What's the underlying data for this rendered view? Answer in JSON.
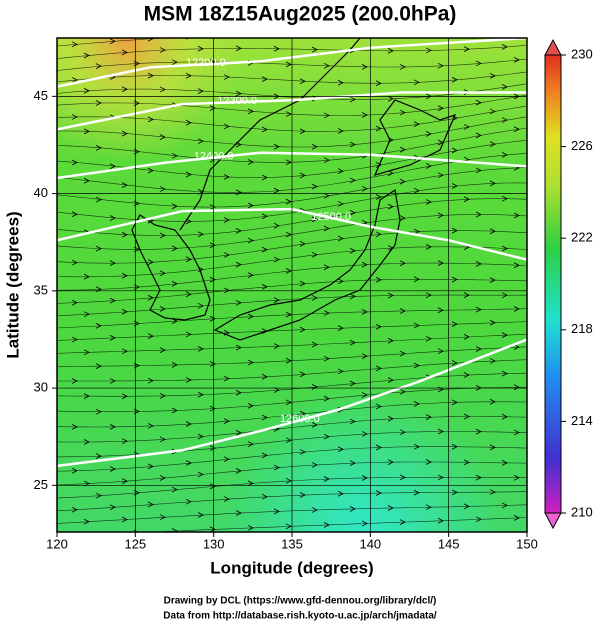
{
  "chart_data": {
    "type": "contour-map",
    "title": "MSM 18Z15Aug2025 (200.0hPa)",
    "xlabel": "Longitude (degrees)",
    "ylabel": "Latitude  (degrees)",
    "xlim": [
      120,
      150
    ],
    "xticks": [
      120,
      125,
      130,
      135,
      140,
      145,
      150
    ],
    "ylim": [
      22.6,
      48
    ],
    "yticks": [
      25,
      30,
      35,
      40,
      45
    ],
    "grid": true,
    "colorbar": {
      "lim": [
        210,
        230
      ],
      "ticks": [
        210,
        214,
        218,
        222,
        226,
        230
      ]
    },
    "contours": [
      {
        "level": 12200,
        "label": "12200.0",
        "lon": [
          120,
          126,
          133,
          140,
          150
        ],
        "lat": [
          45.5,
          46.5,
          46.8,
          47.5,
          48
        ]
      },
      {
        "level": 12300,
        "label": "12300.0",
        "lon": [
          120,
          128,
          135,
          142,
          150
        ],
        "lat": [
          43.3,
          44.6,
          44.8,
          45.2,
          45.2
        ]
      },
      {
        "level": 12400,
        "label": "12400.0",
        "lon": [
          120,
          127,
          133,
          140,
          150
        ],
        "lat": [
          40.8,
          41.6,
          42.1,
          42.0,
          41.4
        ]
      },
      {
        "level": 12500,
        "label": "12500.0",
        "lon": [
          120,
          128,
          135,
          140,
          145,
          150
        ],
        "lat": [
          37.6,
          39.1,
          39.2,
          38.3,
          37.6,
          36.6
        ]
      },
      {
        "level": 12600,
        "label": "12600.0",
        "lon": [
          120,
          128,
          133,
          138,
          143,
          150
        ],
        "lat": [
          26,
          26.8,
          27.8,
          28.9,
          30.3,
          32.5
        ]
      }
    ],
    "credits": [
      "Drawing by DCL (https://www.gfd-dennou.org/library/dcl/)",
      "Data from http://database.rish.kyoto-u.ac.jp/arch/jmadata/"
    ]
  }
}
